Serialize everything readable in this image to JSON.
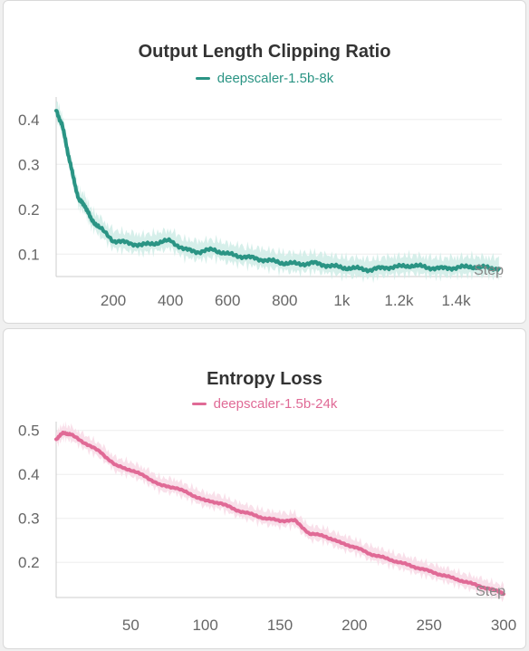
{
  "chart_data": [
    {
      "type": "line",
      "title": "Output Length Clipping Ratio",
      "xlabel": "Step",
      "ylabel": "",
      "xlim": [
        0,
        1560
      ],
      "ylim": [
        0.05,
        0.45
      ],
      "x_ticks": [
        200,
        400,
        600,
        800,
        1000,
        1200,
        1400
      ],
      "x_tick_labels": [
        "200",
        "400",
        "600",
        "800",
        "1k",
        "1.2k",
        "1.4k"
      ],
      "y_ticks": [
        0.1,
        0.2,
        0.3,
        0.4
      ],
      "y_tick_labels": [
        "0.1",
        "0.2",
        "0.3",
        "0.4"
      ],
      "grid": true,
      "legend_position": "top-center",
      "color": "#2a9484",
      "band_color": "#cfece6",
      "series": [
        {
          "name": "deepscaler-1.5b-8k",
          "x": [
            0,
            20,
            40,
            60,
            80,
            100,
            120,
            150,
            200,
            250,
            300,
            350,
            400,
            450,
            500,
            550,
            600,
            650,
            700,
            750,
            800,
            850,
            900,
            950,
            1000,
            1050,
            1100,
            1150,
            1200,
            1250,
            1300,
            1350,
            1400,
            1450,
            1500,
            1550
          ],
          "y": [
            0.42,
            0.39,
            0.33,
            0.27,
            0.22,
            0.21,
            0.18,
            0.16,
            0.13,
            0.125,
            0.12,
            0.125,
            0.13,
            0.11,
            0.105,
            0.11,
            0.1,
            0.095,
            0.09,
            0.085,
            0.08,
            0.078,
            0.08,
            0.075,
            0.07,
            0.068,
            0.065,
            0.07,
            0.072,
            0.075,
            0.07,
            0.068,
            0.07,
            0.072,
            0.07,
            0.068
          ]
        }
      ]
    },
    {
      "type": "line",
      "title": "Entropy Loss",
      "xlabel": "Step",
      "ylabel": "",
      "xlim": [
        0,
        300
      ],
      "ylim": [
        0.12,
        0.52
      ],
      "x_ticks": [
        50,
        100,
        150,
        200,
        250,
        300
      ],
      "x_tick_labels": [
        "50",
        "100",
        "150",
        "200",
        "250",
        "300"
      ],
      "y_ticks": [
        0.2,
        0.3,
        0.4,
        0.5
      ],
      "y_tick_labels": [
        "0.2",
        "0.3",
        "0.4",
        "0.5"
      ],
      "grid": true,
      "legend_position": "top-center",
      "color": "#e06a96",
      "band_color": "#f8dbe6",
      "series": [
        {
          "name": "deepscaler-1.5b-24k",
          "x": [
            0,
            5,
            10,
            20,
            30,
            40,
            50,
            60,
            70,
            80,
            90,
            100,
            110,
            120,
            130,
            140,
            150,
            160,
            170,
            180,
            190,
            200,
            210,
            220,
            230,
            240,
            250,
            260,
            270,
            280,
            290,
            300
          ],
          "y": [
            0.48,
            0.495,
            0.49,
            0.47,
            0.45,
            0.42,
            0.41,
            0.395,
            0.375,
            0.37,
            0.355,
            0.34,
            0.335,
            0.32,
            0.31,
            0.3,
            0.295,
            0.295,
            0.265,
            0.26,
            0.245,
            0.235,
            0.22,
            0.21,
            0.2,
            0.19,
            0.18,
            0.17,
            0.16,
            0.15,
            0.14,
            0.13
          ]
        }
      ]
    }
  ]
}
